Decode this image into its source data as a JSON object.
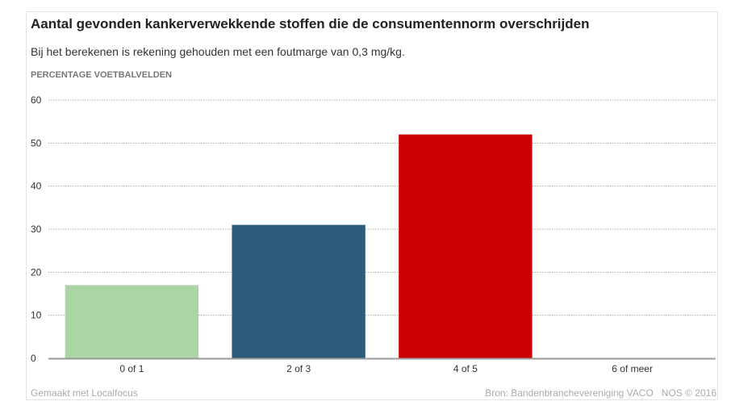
{
  "chart_data": {
    "type": "bar",
    "title": "Aantal gevonden kankerverwekkende stoffen die de consumentennorm overschrijden",
    "subtitle": "Bij het berekenen is rekening gehouden met een foutmarge van 0,3 mg/kg.",
    "ylabel": "PERCENTAGE VOETBALVELDEN",
    "xlabel": "",
    "categories": [
      "0 of 1",
      "2 of 3",
      "4 of 5",
      "6 of meer"
    ],
    "values": [
      17,
      31,
      52,
      0
    ],
    "colors": [
      "#acd5a6",
      "#2e5a7a",
      "#cc0000",
      "#cccccc"
    ],
    "ylim": [
      0,
      60
    ],
    "yticks": [
      0,
      10,
      20,
      30,
      40,
      50,
      60
    ],
    "grid": true
  },
  "footer": {
    "left": "Gemaakt met Localfocus",
    "right": "Bron: Bandenbranchevereniging VACO   NOS © 2016"
  }
}
